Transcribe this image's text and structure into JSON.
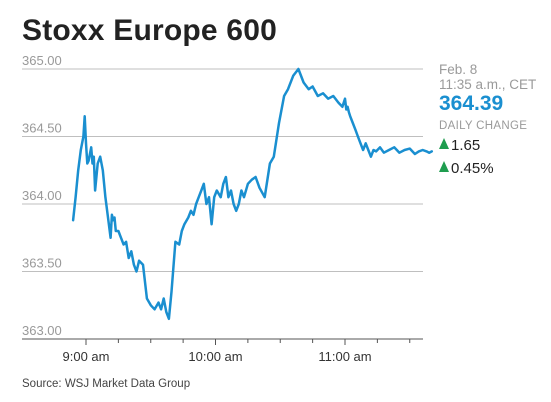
{
  "chart_data": {
    "type": "line",
    "title": "Stoxx Europe 600",
    "ylim": [
      363.0,
      365.0
    ],
    "yticks": [
      365.0,
      364.5,
      364.0,
      363.5,
      363.0
    ],
    "ytick_labels": [
      "365.00",
      "364.50",
      "364.00",
      "363.50",
      "363.00"
    ],
    "xticks": [
      9,
      10,
      11
    ],
    "xtick_labels": [
      "9:00 am",
      "10:00 am",
      "11:00 am"
    ],
    "x_unit": "hours",
    "xlim": [
      8.9,
      11.67
    ],
    "grid": "horizontal",
    "series": [
      {
        "x": [
          8.9,
          8.92,
          8.94,
          8.96,
          8.98,
          8.99,
          9.0,
          9.01,
          9.02,
          9.04,
          9.05,
          9.06,
          9.07,
          9.08,
          9.09,
          9.11,
          9.13,
          9.15,
          9.17,
          9.19,
          9.2,
          9.21,
          9.22,
          9.23,
          9.25,
          9.27,
          9.29,
          9.31,
          9.33,
          9.35,
          9.37,
          9.39,
          9.41,
          9.44,
          9.47,
          9.5,
          9.53,
          9.56,
          9.58,
          9.6,
          9.62,
          9.64,
          9.66,
          9.69,
          9.72,
          9.74,
          9.76,
          9.79,
          9.81,
          9.83,
          9.85,
          9.87,
          9.89,
          9.91,
          9.93,
          9.95,
          9.97,
          9.99,
          10.01,
          10.04,
          10.06,
          10.08,
          10.1,
          10.12,
          10.14,
          10.16,
          10.18,
          10.2,
          10.22,
          10.25,
          10.28,
          10.31,
          10.34,
          10.38,
          10.42,
          10.45,
          10.49,
          10.53,
          10.56,
          10.6,
          10.64,
          10.68,
          10.72,
          10.75,
          10.79,
          10.83,
          10.87,
          10.91,
          10.95,
          10.98,
          11.0,
          11.01,
          11.02,
          11.03,
          11.04,
          11.06,
          11.08,
          11.1,
          11.12,
          11.14,
          11.16,
          11.18,
          11.2,
          11.22,
          11.24,
          11.27,
          11.3,
          11.34,
          11.38,
          11.42,
          11.46,
          11.5,
          11.54,
          11.57,
          11.6,
          11.63,
          11.65,
          11.67
        ],
        "values": [
          363.88,
          364.05,
          364.25,
          364.4,
          364.5,
          364.65,
          364.45,
          364.3,
          364.32,
          364.42,
          364.3,
          364.35,
          364.1,
          364.2,
          364.3,
          364.35,
          364.25,
          364.05,
          363.9,
          363.75,
          363.92,
          363.88,
          363.9,
          363.8,
          363.8,
          363.75,
          363.7,
          363.72,
          363.6,
          363.65,
          363.55,
          363.5,
          363.58,
          363.55,
          363.3,
          363.25,
          363.22,
          363.27,
          363.22,
          363.3,
          363.2,
          363.15,
          363.35,
          363.72,
          363.7,
          363.8,
          363.85,
          363.9,
          363.95,
          363.92,
          364.0,
          364.05,
          364.1,
          364.15,
          364.0,
          364.05,
          363.85,
          364.05,
          364.1,
          364.05,
          364.15,
          364.2,
          364.05,
          364.1,
          364.0,
          363.95,
          364.0,
          364.1,
          364.05,
          364.15,
          364.18,
          364.2,
          364.12,
          364.05,
          364.3,
          364.35,
          364.6,
          364.8,
          364.85,
          364.95,
          365.0,
          364.9,
          364.85,
          364.87,
          364.8,
          364.82,
          364.78,
          364.8,
          364.75,
          364.72,
          364.78,
          364.7,
          364.72,
          364.68,
          364.65,
          364.6,
          364.55,
          364.5,
          364.45,
          364.4,
          364.45,
          364.4,
          364.35,
          364.4,
          364.39,
          364.42,
          364.38,
          364.4,
          364.42,
          364.38,
          364.4,
          364.41,
          364.37,
          364.39,
          364.4,
          364.39,
          364.38,
          364.39
        ]
      }
    ]
  },
  "info": {
    "date": "Feb. 8",
    "time": "11:35 a.m., CET",
    "price": "364.39",
    "daily_change_label": "DAILY CHANGE",
    "change_points": "1.65",
    "change_percent": "0.45%"
  },
  "source": "Source: WSJ Market Data Group",
  "colors": {
    "line": "#1a8fd0",
    "grid": "#bfbfbf",
    "axis": "#555555",
    "tick_text": "#999999",
    "up_arrow": "#1f9d4f"
  }
}
